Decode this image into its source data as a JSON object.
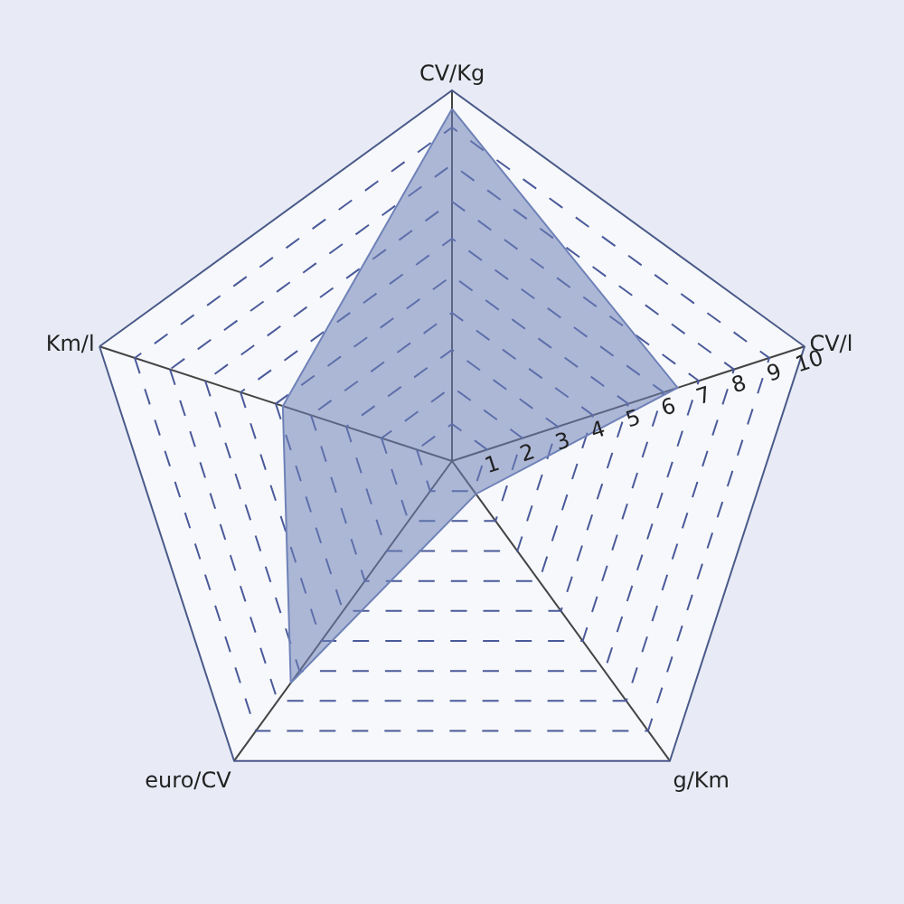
{
  "chart_data": {
    "type": "radar",
    "categories": [
      "CV/Kg",
      "CV/l",
      "g/Km",
      "euro/CV",
      "Km/l"
    ],
    "series": [
      {
        "color": "#6f82b8",
        "values": [
          9.5,
          6.4,
          1.1,
          7.4,
          4.8
        ]
      }
    ],
    "ylim": [
      0,
      10
    ],
    "yticks": [
      1,
      2,
      3,
      4,
      5,
      6,
      7,
      8,
      9,
      10
    ],
    "grid": true,
    "line_style": "dashed"
  }
}
